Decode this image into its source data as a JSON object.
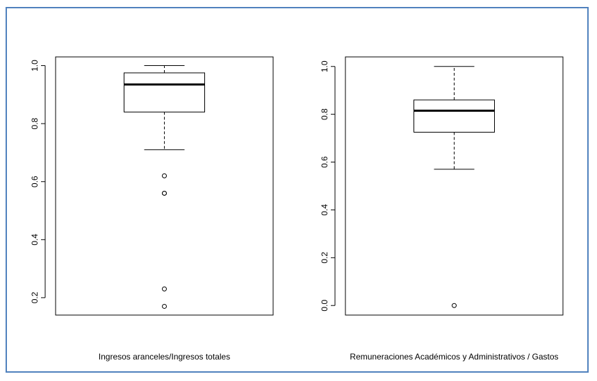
{
  "chart_data": [
    {
      "type": "box",
      "xlabel": "Ingresos aranceles/Ingresos totales",
      "ylim": [
        0.14,
        1.03
      ],
      "y_ticks": [
        0.2,
        0.4,
        0.6,
        0.8,
        1.0
      ],
      "y_tick_labels": [
        "0.2",
        "0.4",
        "0.6",
        "0.8",
        "1.0"
      ],
      "box": {
        "whisker_low": 0.71,
        "q1": 0.84,
        "median": 0.935,
        "q3": 0.975,
        "whisker_high": 1.0
      },
      "outliers": [
        0.62,
        0.56,
        0.56,
        0.23,
        0.17
      ],
      "grid": false
    },
    {
      "type": "box",
      "xlabel": "Remuneraciones Académicos y Administrativos / Gastos",
      "ylim": [
        -0.04,
        1.04
      ],
      "y_ticks": [
        0.0,
        0.2,
        0.4,
        0.6,
        0.8,
        1.0
      ],
      "y_tick_labels": [
        "0.0",
        "0.2",
        "0.4",
        "0.6",
        "0.8",
        "1.0"
      ],
      "box": {
        "whisker_low": 0.57,
        "q1": 0.725,
        "median": 0.815,
        "q3": 0.86,
        "whisker_high": 1.0
      },
      "outliers": [
        0.0
      ],
      "grid": false
    }
  ],
  "colors": {
    "frame_border": "#4f81bd",
    "ink": "#000000"
  }
}
